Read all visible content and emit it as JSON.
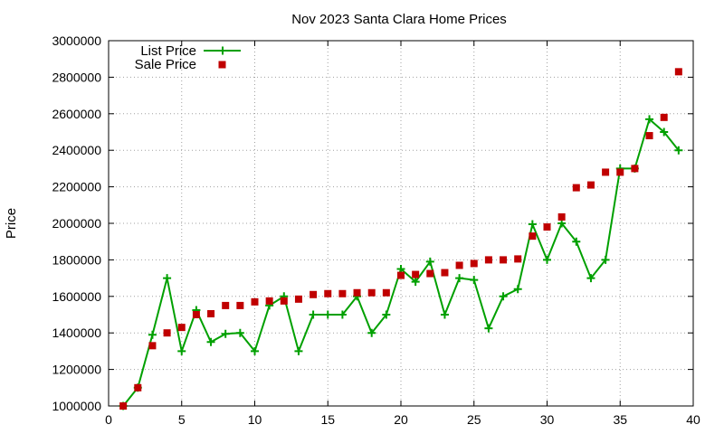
{
  "chart_data": {
    "type": "line",
    "title": "Nov 2023 Santa Clara Home Prices",
    "xlabel": "",
    "ylabel": "Price",
    "xlim": [
      0,
      40
    ],
    "ylim": [
      1000000,
      3000000
    ],
    "xticks": [
      "0",
      "5",
      "10",
      "15",
      "20",
      "25",
      "30",
      "35",
      "40"
    ],
    "yticks": [
      "1000000",
      "1200000",
      "1400000",
      "1600000",
      "1800000",
      "2000000",
      "2200000",
      "2400000",
      "2600000",
      "2800000",
      "3000000"
    ],
    "grid": true,
    "legend_position": "top-left",
    "x": [
      1,
      2,
      3,
      4,
      5,
      6,
      7,
      8,
      9,
      10,
      11,
      12,
      13,
      14,
      15,
      16,
      17,
      18,
      19,
      20,
      21,
      22,
      23,
      24,
      25,
      26,
      27,
      28,
      29,
      30,
      31,
      32,
      33,
      34,
      35,
      36,
      37,
      38,
      39
    ],
    "series": [
      {
        "name": "List Price",
        "style": "line-plus",
        "color": "#00a000",
        "values": [
          1000000,
          1100000,
          1390000,
          1700000,
          1300000,
          1525000,
          1350000,
          1395000,
          1400000,
          1300000,
          1550000,
          1600000,
          1300000,
          1500000,
          1500000,
          1500000,
          1600000,
          1400000,
          1500000,
          1750000,
          1680000,
          1790000,
          1500000,
          1700000,
          1690000,
          1425000,
          1600000,
          1640000,
          1995000,
          1800000,
          2000000,
          1900000,
          1700000,
          1800000,
          2300000,
          2300000,
          2570000,
          2500000,
          2400000
        ]
      },
      {
        "name": "Sale Price",
        "style": "square-markers",
        "color": "#c00000",
        "values": [
          1000000,
          1100000,
          1330000,
          1400000,
          1430000,
          1500000,
          1505000,
          1550000,
          1550000,
          1570000,
          1575000,
          1575000,
          1585000,
          1610000,
          1615000,
          1615000,
          1620000,
          1620000,
          1620000,
          1715000,
          1720000,
          1725000,
          1730000,
          1770000,
          1780000,
          1800000,
          1800000,
          1805000,
          1930000,
          1980000,
          2035000,
          2195000,
          2210000,
          2280000,
          2280000,
          2300000,
          2480000,
          2580000,
          2830000
        ]
      }
    ]
  }
}
